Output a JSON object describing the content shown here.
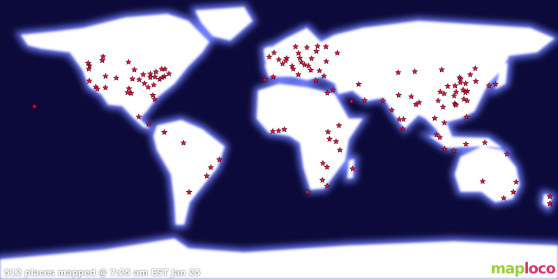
{
  "status_text": "512 places mapped @ 7:25 am EST Jan 25",
  "logo": {
    "part1": "map",
    "part2": "loco"
  },
  "colors": {
    "ocean": "#0c0a3a",
    "land": "#ffffff",
    "glow": "#6f7fff",
    "marker": "#e8103c",
    "logo_green": "#9acd32",
    "logo_pink": "#e0306a"
  },
  "marker_icon": "red-star-icon",
  "markers": [
    [
      47.6,
      -122.3
    ],
    [
      45.5,
      -122.7
    ],
    [
      37.8,
      -122.4
    ],
    [
      34.0,
      -118.2
    ],
    [
      32.7,
      -117.2
    ],
    [
      49.3,
      -123.1
    ],
    [
      51.0,
      -114.0
    ],
    [
      53.5,
      -113.5
    ],
    [
      39.7,
      -105.0
    ],
    [
      33.4,
      -112.0
    ],
    [
      40.8,
      -111.9
    ],
    [
      32.8,
      -96.8
    ],
    [
      29.8,
      -95.4
    ],
    [
      30.3,
      -97.7
    ],
    [
      41.9,
      -87.6
    ],
    [
      45.0,
      -93.3
    ],
    [
      42.3,
      -83.0
    ],
    [
      43.7,
      -79.4
    ],
    [
      45.5,
      -73.6
    ],
    [
      40.7,
      -74.0
    ],
    [
      42.4,
      -71.0
    ],
    [
      40.0,
      -75.2
    ],
    [
      38.9,
      -77.0
    ],
    [
      33.7,
      -84.4
    ],
    [
      25.8,
      -80.2
    ],
    [
      28.5,
      -81.4
    ],
    [
      35.2,
      -80.8
    ],
    [
      36.2,
      -86.8
    ],
    [
      38.6,
      -90.2
    ],
    [
      39.1,
      -94.6
    ],
    [
      40.0,
      -83.0
    ],
    [
      40.4,
      -80.0
    ],
    [
      45.4,
      -75.7
    ],
    [
      49.9,
      -97.1
    ],
    [
      21.3,
      -157.8
    ],
    [
      14.6,
      -90.5
    ],
    [
      9.9,
      -84.0
    ],
    [
      4.7,
      -74.0
    ],
    [
      -2.2,
      -61.6
    ],
    [
      -18.0,
      -44.0
    ],
    [
      -23.5,
      -46.6
    ],
    [
      -34.0,
      -58.0
    ],
    [
      -13.0,
      -38.5
    ],
    [
      51.5,
      -0.1
    ],
    [
      48.9,
      2.35
    ],
    [
      52.5,
      13.4
    ],
    [
      52.4,
      4.9
    ],
    [
      40.4,
      -3.7
    ],
    [
      38.7,
      -9.1
    ],
    [
      41.9,
      12.5
    ],
    [
      45.5,
      9.2
    ],
    [
      48.2,
      16.4
    ],
    [
      50.0,
      14.4
    ],
    [
      52.2,
      21.0
    ],
    [
      59.3,
      18.0
    ],
    [
      59.9,
      10.7
    ],
    [
      55.7,
      12.6
    ],
    [
      60.2,
      24.9
    ],
    [
      55.8,
      37.6
    ],
    [
      50.4,
      30.5
    ],
    [
      47.5,
      19.0
    ],
    [
      38.0,
      23.7
    ],
    [
      41.0,
      29.0
    ],
    [
      53.3,
      -6.3
    ],
    [
      55.95,
      -3.2
    ],
    [
      50.85,
      4.35
    ],
    [
      47.4,
      8.5
    ],
    [
      44.4,
      26.1
    ],
    [
      44.8,
      20.5
    ],
    [
      59.9,
      30.3
    ],
    [
      56.9,
      24.1
    ],
    [
      30.0,
      31.2
    ],
    [
      32.0,
      34.8
    ],
    [
      24.7,
      46.7
    ],
    [
      25.2,
      55.3
    ],
    [
      35.7,
      51.4
    ],
    [
      6.5,
      3.4
    ],
    [
      5.6,
      -0.2
    ],
    [
      5.3,
      -4.0
    ],
    [
      -1.3,
      36.8
    ],
    [
      9.0,
      38.7
    ],
    [
      0.3,
      32.6
    ],
    [
      -6.8,
      39.3
    ],
    [
      -26.2,
      28.0
    ],
    [
      -33.9,
      18.4
    ],
    [
      -29.9,
      31.0
    ],
    [
      -17.8,
      31.0
    ],
    [
      -15.4,
      28.3
    ],
    [
      -18.9,
      47.5
    ],
    [
      4.9,
      31.6
    ],
    [
      24.9,
      67.0
    ],
    [
      28.6,
      77.2
    ],
    [
      19.0,
      72.8
    ],
    [
      13.0,
      77.6
    ],
    [
      13.0,
      80.3
    ],
    [
      22.6,
      88.4
    ],
    [
      23.8,
      90.4
    ],
    [
      27.7,
      85.3
    ],
    [
      6.9,
      79.9
    ],
    [
      43.2,
      76.9
    ],
    [
      43.8,
      87.6
    ],
    [
      45.0,
      105.0
    ],
    [
      39.9,
      116.4
    ],
    [
      31.2,
      121.5
    ],
    [
      23.1,
      113.3
    ],
    [
      22.5,
      114.0
    ],
    [
      22.3,
      114.2
    ],
    [
      30.7,
      104.0
    ],
    [
      29.6,
      106.5
    ],
    [
      30.6,
      114.3
    ],
    [
      34.3,
      108.9
    ],
    [
      32.0,
      118.8
    ],
    [
      30.3,
      120.2
    ],
    [
      39.1,
      117.2
    ],
    [
      41.8,
      123.4
    ],
    [
      45.8,
      126.6
    ],
    [
      36.1,
      120.4
    ],
    [
      25.0,
      102.7
    ],
    [
      26.0,
      119.3
    ],
    [
      34.7,
      113.6
    ],
    [
      28.2,
      113.0
    ],
    [
      36.7,
      117.0
    ],
    [
      37.6,
      127.0
    ],
    [
      35.7,
      139.7
    ],
    [
      34.7,
      135.5
    ],
    [
      25.0,
      121.5
    ],
    [
      14.6,
      121.0
    ],
    [
      21.0,
      105.8
    ],
    [
      10.8,
      106.7
    ],
    [
      13.75,
      100.5
    ],
    [
      3.1,
      101.7
    ],
    [
      1.3,
      103.8
    ],
    [
      -6.2,
      106.8
    ],
    [
      -7.25,
      112.75
    ],
    [
      -3.0,
      120.6
    ],
    [
      -2.0,
      132.8
    ],
    [
      -9.4,
      147.0
    ],
    [
      -27.0,
      131.4
    ],
    [
      -27.5,
      153.0
    ],
    [
      -33.9,
      151.2
    ],
    [
      -37.8,
      145.0
    ],
    [
      -36.8,
      174.8
    ],
    [
      -41.3,
      174.8
    ]
  ]
}
